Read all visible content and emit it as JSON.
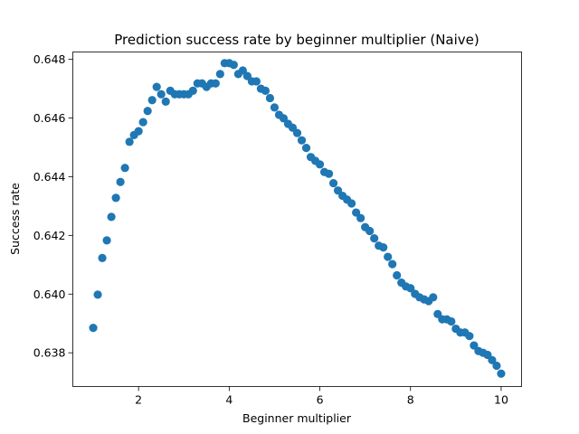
{
  "chart_data": {
    "type": "scatter",
    "title": "Prediction success rate by beginner multiplier (Naive)",
    "xlabel": "Beginner multiplier",
    "ylabel": "Success rate",
    "xlim": [
      0.55,
      10.45
    ],
    "ylim": [
      0.63685,
      0.64825
    ],
    "xticks": [
      2,
      4,
      6,
      8,
      10
    ],
    "yticks": [
      0.638,
      0.64,
      0.642,
      0.644,
      0.646,
      0.648
    ],
    "xtick_labels": [
      "2",
      "4",
      "6",
      "8",
      "10"
    ],
    "ytick_labels": [
      "0.638",
      "0.640",
      "0.642",
      "0.644",
      "0.646",
      "0.648"
    ],
    "grid": false,
    "marker_color": "#1f77b4",
    "x": [
      1.0,
      1.1,
      1.2,
      1.3,
      1.4,
      1.5,
      1.6,
      1.7,
      1.8,
      1.9,
      2.0,
      2.1,
      2.2,
      2.3,
      2.4,
      2.5,
      2.6,
      2.7,
      2.8,
      2.9,
      3.0,
      3.1,
      3.2,
      3.3,
      3.4,
      3.5,
      3.6,
      3.7,
      3.8,
      3.9,
      4.0,
      4.1,
      4.2,
      4.3,
      4.4,
      4.5,
      4.6,
      4.7,
      4.8,
      4.9,
      5.0,
      5.1,
      5.2,
      5.3,
      5.4,
      5.5,
      5.6,
      5.7,
      5.8,
      5.9,
      6.0,
      6.1,
      6.2,
      6.3,
      6.4,
      6.5,
      6.6,
      6.7,
      6.8,
      6.9,
      7.0,
      7.1,
      7.2,
      7.3,
      7.4,
      7.5,
      7.6,
      7.7,
      7.8,
      7.9,
      8.0,
      8.1,
      8.2,
      8.3,
      8.4,
      8.5,
      8.6,
      8.7,
      8.8,
      8.9,
      9.0,
      9.1,
      9.2,
      9.3,
      9.4,
      9.5,
      9.6,
      9.7,
      9.8,
      9.9,
      10.0
    ],
    "y": [
      0.63885,
      0.63998,
      0.64123,
      0.64183,
      0.64263,
      0.64328,
      0.64382,
      0.6443,
      0.64519,
      0.64542,
      0.64555,
      0.64586,
      0.64624,
      0.64661,
      0.64706,
      0.64681,
      0.64656,
      0.64693,
      0.64681,
      0.64681,
      0.64681,
      0.64681,
      0.64693,
      0.64718,
      0.64718,
      0.64706,
      0.64718,
      0.64718,
      0.6475,
      0.64787,
      0.64787,
      0.64781,
      0.6475,
      0.64762,
      0.64743,
      0.64725,
      0.64725,
      0.647,
      0.64693,
      0.64668,
      0.64636,
      0.64611,
      0.64599,
      0.6458,
      0.64567,
      0.64549,
      0.64524,
      0.64498,
      0.64467,
      0.64454,
      0.64442,
      0.64416,
      0.6441,
      0.64378,
      0.64353,
      0.64335,
      0.64322,
      0.64309,
      0.64278,
      0.64259,
      0.64228,
      0.64215,
      0.6419,
      0.64165,
      0.64159,
      0.64127,
      0.64102,
      0.64064,
      0.64039,
      0.64026,
      0.6402,
      0.64001,
      0.63989,
      0.63982,
      0.63976,
      0.63989,
      0.63932,
      0.63914,
      0.63914,
      0.63907,
      0.63882,
      0.63869,
      0.63869,
      0.63857,
      0.63825,
      0.63806,
      0.638,
      0.63793,
      0.63775,
      0.63756,
      0.63729
    ]
  }
}
